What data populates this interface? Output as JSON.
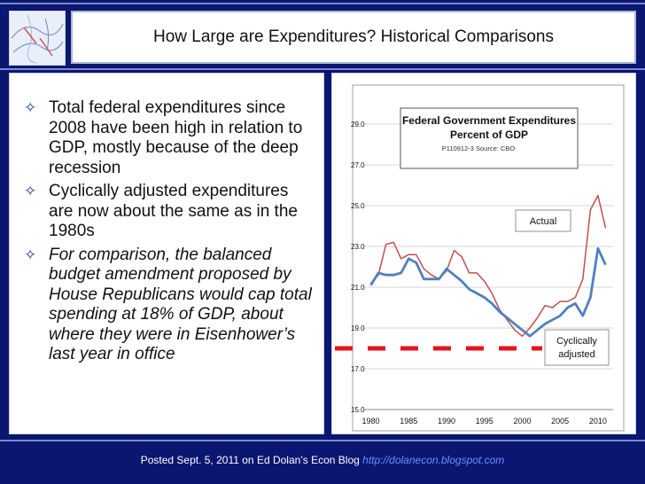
{
  "slide": {
    "title": "How Large are Expenditures? Historical Comparisons",
    "bullets": [
      {
        "text": "Total federal expenditures since 2008 have been high in relation to GDP, mostly because of the deep recession",
        "italic": false
      },
      {
        "text": "Cyclically adjusted expenditures are now about the same as in the 1980s",
        "italic": false
      },
      {
        "text": "For comparison, the balanced budget amendment proposed by House Republicans would cap total spending at 18% of GDP, about where they were in Eisenhower’s last year in office",
        "italic": true
      }
    ],
    "footer_text": "Posted Sept. 5, 2011 on Ed Dolan’s Econ Blog",
    "footer_link": "http://dolanecon.blogspot.com"
  },
  "colors": {
    "background": "#0a1670",
    "actual_line": "#c0504d",
    "adjusted_line": "#4f81bd",
    "reference_line": "#e8141c"
  },
  "chart_data": {
    "type": "line",
    "title": "Federal Government Expenditures",
    "subtitle": "Percent of GDP",
    "source": "P110912-3 Source: CBO",
    "xlabel": "",
    "ylabel": "",
    "xlim": [
      1979,
      2012
    ],
    "ylim": [
      15.0,
      29.0
    ],
    "x_ticks": [
      1980,
      1985,
      1990,
      1995,
      2000,
      2005,
      2010
    ],
    "y_ticks": [
      "15.0",
      "17.0",
      "19.0",
      "21.0",
      "23.0",
      "25.0",
      "27.0",
      "29.0"
    ],
    "grid": true,
    "x": [
      1980,
      1981,
      1982,
      1983,
      1984,
      1985,
      1986,
      1987,
      1988,
      1989,
      1990,
      1991,
      1992,
      1993,
      1994,
      1995,
      1996,
      1997,
      1998,
      1999,
      2000,
      2001,
      2002,
      2003,
      2004,
      2005,
      2006,
      2007,
      2008,
      2009,
      2010,
      2011
    ],
    "series": [
      {
        "name": "Actual",
        "values": [
          21.2,
          21.6,
          23.1,
          23.2,
          22.4,
          22.6,
          22.6,
          21.9,
          21.6,
          21.4,
          21.8,
          22.8,
          22.5,
          21.7,
          21.7,
          21.3,
          20.7,
          19.9,
          19.4,
          18.9,
          18.6,
          19.0,
          19.5,
          20.1,
          20.0,
          20.3,
          20.3,
          20.5,
          21.4,
          24.8,
          25.5,
          23.9
        ]
      },
      {
        "name": "Cyclically adjusted",
        "values": [
          21.1,
          21.7,
          21.6,
          21.6,
          21.7,
          22.4,
          22.2,
          21.4,
          21.4,
          21.4,
          21.9,
          21.6,
          21.3,
          20.9,
          20.7,
          20.5,
          20.2,
          19.8,
          19.5,
          19.2,
          18.9,
          18.6,
          18.9,
          19.2,
          19.4,
          19.6,
          20.0,
          20.2,
          19.6,
          20.5,
          22.9,
          22.1
        ]
      }
    ],
    "reference_line": {
      "y": 18.0
    }
  }
}
